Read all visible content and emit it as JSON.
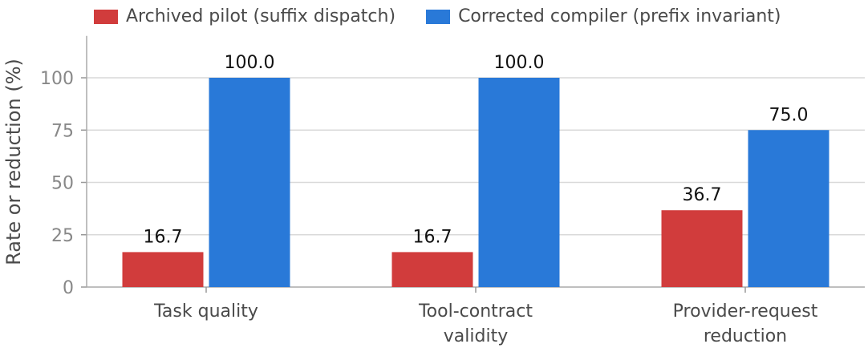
{
  "chart_data": {
    "type": "bar",
    "categories": [
      [
        "Task quality"
      ],
      [
        "Tool-contract",
        "validity"
      ],
      [
        "Provider-request",
        "reduction"
      ]
    ],
    "series": [
      {
        "name": "Archived pilot (suffix dispatch)",
        "values": [
          16.7,
          16.7,
          36.7
        ],
        "color": "#d13c3c"
      },
      {
        "name": "Corrected compiler (prefix invariant)",
        "values": [
          100.0,
          100.0,
          75.0
        ],
        "color": "#2979d8"
      }
    ],
    "data_labels": [
      [
        "16.7",
        "16.7",
        "36.7"
      ],
      [
        "100.0",
        "100.0",
        "75.0"
      ]
    ],
    "ylabel": "Rate or reduction (%)",
    "ylim": [
      0,
      120
    ],
    "yticks": [
      0,
      25,
      50,
      75,
      100
    ],
    "grid": true,
    "legend_position": "top"
  }
}
